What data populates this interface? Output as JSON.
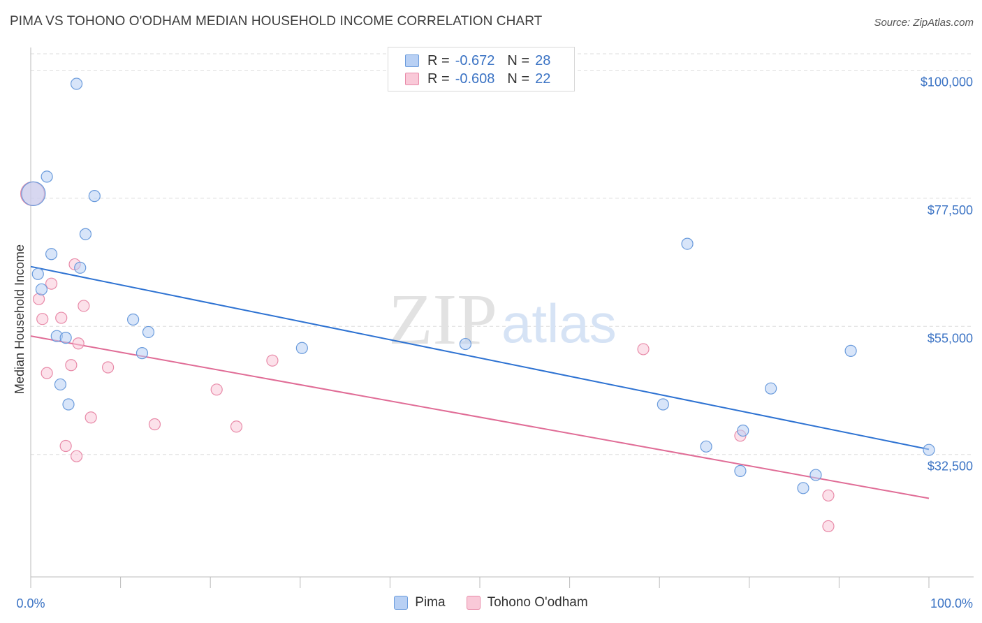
{
  "title": "PIMA VS TOHONO O'ODHAM MEDIAN HOUSEHOLD INCOME CORRELATION CHART",
  "source": "Source: ZipAtlas.com",
  "watermark": {
    "zip": "ZIP",
    "atlas": "atlas"
  },
  "legend_top": {
    "rows": [
      {
        "r_label": "R =",
        "r_value": "-0.672",
        "n_label": "N =",
        "n_value": "28",
        "fill": "#b8d0f4",
        "stroke": "#6a9bdc"
      },
      {
        "r_label": "R =",
        "r_value": "-0.608",
        "n_label": "N =",
        "n_value": "22",
        "fill": "#f9c9d8",
        "stroke": "#e88aa8"
      }
    ]
  },
  "legend_bottom": [
    {
      "label": "Pima",
      "fill": "#b8d0f4",
      "stroke": "#6a9bdc"
    },
    {
      "label": "Tohono O'odham",
      "fill": "#f9c9d8",
      "stroke": "#e88aa8"
    }
  ],
  "colors": {
    "blue_line": "#2d72d2",
    "pink_line": "#e06c96",
    "axis_label": "#3b73c4"
  },
  "chart_data": {
    "type": "scatter",
    "title": "PIMA VS TOHONO O'ODHAM MEDIAN HOUSEHOLD INCOME CORRELATION CHART",
    "xlabel": "",
    "ylabel": "Median Household Income",
    "xlim": [
      0,
      100
    ],
    "ylim": [
      11000,
      103000
    ],
    "x_tick_labels": [
      "0.0%",
      "100.0%"
    ],
    "y_ticks": [
      32500,
      55000,
      77500,
      100000
    ],
    "y_tick_labels": [
      "$32,500",
      "$55,000",
      "$77,500",
      "$100,000"
    ],
    "grid": true,
    "series": [
      {
        "name": "Pima",
        "r": -0.672,
        "n": 28,
        "trend": {
          "x": [
            0,
            100
          ],
          "y": [
            65500,
            33400
          ]
        },
        "points": [
          {
            "x": 0.3,
            "y": 78300,
            "big": true
          },
          {
            "x": 5.1,
            "y": 97600
          },
          {
            "x": 1.8,
            "y": 81300
          },
          {
            "x": 7.1,
            "y": 77900
          },
          {
            "x": 6.1,
            "y": 71200
          },
          {
            "x": 2.3,
            "y": 67700
          },
          {
            "x": 5.5,
            "y": 65300
          },
          {
            "x": 0.8,
            "y": 64200
          },
          {
            "x": 1.2,
            "y": 61500
          },
          {
            "x": 11.4,
            "y": 56200
          },
          {
            "x": 13.1,
            "y": 54000
          },
          {
            "x": 2.9,
            "y": 53300
          },
          {
            "x": 3.9,
            "y": 53000
          },
          {
            "x": 12.4,
            "y": 50300
          },
          {
            "x": 30.2,
            "y": 51200
          },
          {
            "x": 48.4,
            "y": 51900
          },
          {
            "x": 3.3,
            "y": 44800
          },
          {
            "x": 4.2,
            "y": 41300
          },
          {
            "x": 73.1,
            "y": 69500
          },
          {
            "x": 70.4,
            "y": 41300
          },
          {
            "x": 79.3,
            "y": 36700
          },
          {
            "x": 75.2,
            "y": 33900
          },
          {
            "x": 82.4,
            "y": 44100
          },
          {
            "x": 91.3,
            "y": 50700
          },
          {
            "x": 79.0,
            "y": 29600
          },
          {
            "x": 87.4,
            "y": 28900
          },
          {
            "x": 86.0,
            "y": 26600
          },
          {
            "x": 100.0,
            "y": 33300
          }
        ]
      },
      {
        "name": "Tohono O'odham",
        "r": -0.608,
        "n": 22,
        "trend": {
          "x": [
            0,
            100
          ],
          "y": [
            53300,
            24800
          ]
        },
        "points": [
          {
            "x": 0.2,
            "y": 78300,
            "big": true
          },
          {
            "x": 4.9,
            "y": 65900
          },
          {
            "x": 2.3,
            "y": 62500
          },
          {
            "x": 0.9,
            "y": 59800
          },
          {
            "x": 5.9,
            "y": 58600
          },
          {
            "x": 1.3,
            "y": 56300
          },
          {
            "x": 3.4,
            "y": 56500
          },
          {
            "x": 5.3,
            "y": 52000
          },
          {
            "x": 4.5,
            "y": 48200
          },
          {
            "x": 8.6,
            "y": 47800
          },
          {
            "x": 1.8,
            "y": 46800
          },
          {
            "x": 26.9,
            "y": 49000
          },
          {
            "x": 20.7,
            "y": 43900
          },
          {
            "x": 68.2,
            "y": 51000
          },
          {
            "x": 6.7,
            "y": 39000
          },
          {
            "x": 13.8,
            "y": 37800
          },
          {
            "x": 22.9,
            "y": 37400
          },
          {
            "x": 3.9,
            "y": 34000
          },
          {
            "x": 5.1,
            "y": 32200
          },
          {
            "x": 79.0,
            "y": 35800
          },
          {
            "x": 88.8,
            "y": 25300
          },
          {
            "x": 88.8,
            "y": 19900
          }
        ]
      }
    ]
  }
}
